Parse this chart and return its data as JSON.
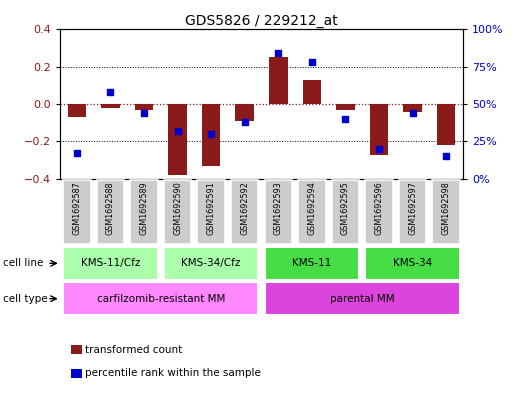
{
  "title": "GDS5826 / 229212_at",
  "samples": [
    "GSM1692587",
    "GSM1692588",
    "GSM1692589",
    "GSM1692590",
    "GSM1692591",
    "GSM1692592",
    "GSM1692593",
    "GSM1692594",
    "GSM1692595",
    "GSM1692596",
    "GSM1692597",
    "GSM1692598"
  ],
  "bar_values": [
    -0.07,
    -0.02,
    -0.03,
    -0.38,
    -0.33,
    -0.09,
    0.25,
    0.13,
    -0.03,
    -0.27,
    -0.04,
    -0.22
  ],
  "dot_values": [
    17,
    58,
    44,
    32,
    30,
    38,
    84,
    78,
    40,
    20,
    44,
    15
  ],
  "bar_color": "#8B1A1A",
  "dot_color": "#0000CC",
  "ylim_left": [
    -0.4,
    0.4
  ],
  "ylim_right": [
    0,
    100
  ],
  "yticks_left": [
    -0.4,
    -0.2,
    0.0,
    0.2,
    0.4
  ],
  "yticks_right": [
    0,
    25,
    50,
    75,
    100
  ],
  "ytick_labels_right": [
    "0%",
    "25%",
    "50%",
    "75%",
    "100%"
  ],
  "dotted_lines_black": [
    -0.2,
    0.2
  ],
  "cell_line_groups": [
    {
      "label": "KMS-11/Cfz",
      "start": 0,
      "end": 2,
      "color": "#AAFFAA"
    },
    {
      "label": "KMS-34/Cfz",
      "start": 3,
      "end": 5,
      "color": "#AAFFAA"
    },
    {
      "label": "KMS-11",
      "start": 6,
      "end": 8,
      "color": "#44DD44"
    },
    {
      "label": "KMS-34",
      "start": 9,
      "end": 11,
      "color": "#44DD44"
    }
  ],
  "cell_type_groups": [
    {
      "label": "carfilzomib-resistant MM",
      "start": 0,
      "end": 5,
      "color": "#FF88FF"
    },
    {
      "label": "parental MM",
      "start": 6,
      "end": 11,
      "color": "#DD44DD"
    }
  ],
  "cell_line_row_label": "cell line",
  "cell_type_row_label": "cell type",
  "legend_bar_label": "transformed count",
  "legend_dot_label": "percentile rank within the sample",
  "bar_color_label": "#8B1A1A",
  "dot_color_label": "#0000CC",
  "tick_gray_bg": "#CCCCCC"
}
